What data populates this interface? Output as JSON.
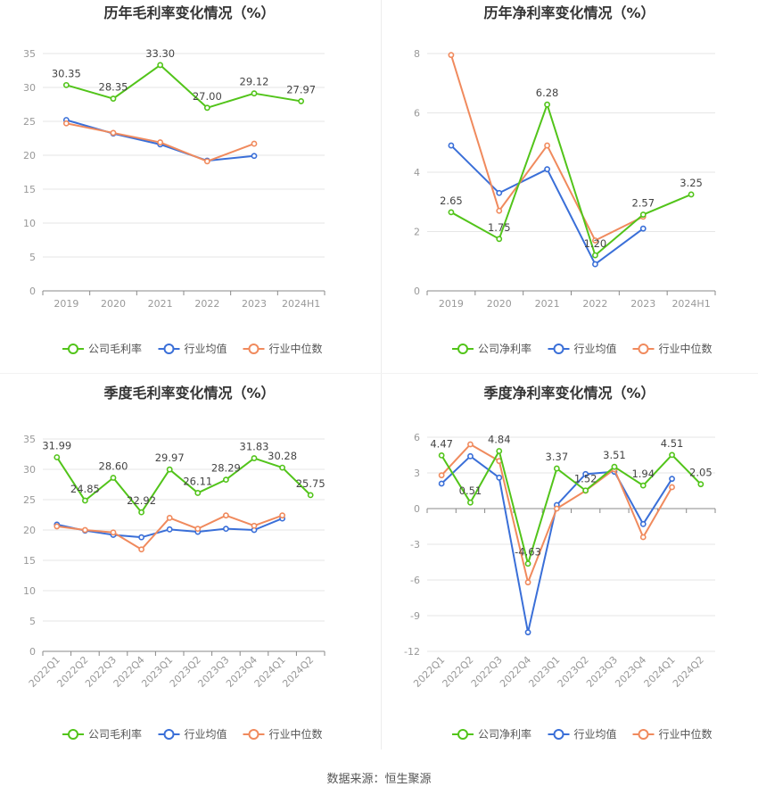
{
  "source_note": "数据来源：恒生聚源",
  "colors": {
    "company": "#52c41a",
    "avg": "#3a6fd8",
    "median": "#f08a5d",
    "grid": "#e6e6e6",
    "axis": "#999999"
  },
  "chart_data": [
    {
      "type": "line",
      "title": "历年毛利率变化情况（%）",
      "categories": [
        "2019",
        "2020",
        "2021",
        "2022",
        "2023",
        "2024H1"
      ],
      "ylim": [
        0,
        35
      ],
      "yticks": [
        0,
        5,
        10,
        15,
        20,
        25,
        30,
        35
      ],
      "legend_position": "bottom",
      "series": [
        {
          "name": "公司毛利率",
          "color": "#52c41a",
          "values": [
            30.35,
            28.35,
            33.3,
            27.0,
            29.12,
            27.97
          ],
          "labels": [
            "30.35",
            "28.35",
            "33.30",
            "27.00",
            "29.12",
            "27.97"
          ]
        },
        {
          "name": "行业均值",
          "color": "#3a6fd8",
          "values": [
            25.2,
            23.2,
            21.6,
            19.2,
            19.9,
            null
          ]
        },
        {
          "name": "行业中位数",
          "color": "#f08a5d",
          "values": [
            24.7,
            23.3,
            21.9,
            19.1,
            21.7,
            null
          ]
        }
      ]
    },
    {
      "type": "line",
      "title": "历年净利率变化情况（%）",
      "categories": [
        "2019",
        "2020",
        "2021",
        "2022",
        "2023",
        "2024H1"
      ],
      "ylim": [
        0,
        8
      ],
      "yticks": [
        0,
        2,
        4,
        6,
        8
      ],
      "legend_position": "bottom",
      "series": [
        {
          "name": "公司净利率",
          "color": "#52c41a",
          "values": [
            2.65,
            1.75,
            6.28,
            1.2,
            2.57,
            3.25
          ],
          "labels": [
            "2.65",
            "1.75",
            "6.28",
            "1.20",
            "2.57",
            "3.25"
          ]
        },
        {
          "name": "行业均值",
          "color": "#3a6fd8",
          "values": [
            4.9,
            3.3,
            4.1,
            0.9,
            2.1,
            null
          ]
        },
        {
          "name": "行业中位数",
          "color": "#f08a5d",
          "values": [
            7.95,
            2.7,
            4.9,
            1.7,
            2.5,
            null
          ]
        }
      ]
    },
    {
      "type": "line",
      "title": "季度毛利率变化情况（%）",
      "categories": [
        "2022Q1",
        "2022Q2",
        "2022Q3",
        "2022Q4",
        "2023Q1",
        "2023Q2",
        "2023Q3",
        "2023Q4",
        "2024Q1",
        "2024Q2"
      ],
      "ylim": [
        0,
        35
      ],
      "yticks": [
        0,
        5,
        10,
        15,
        20,
        25,
        30,
        35
      ],
      "legend_position": "bottom",
      "series": [
        {
          "name": "公司毛利率",
          "color": "#52c41a",
          "values": [
            31.99,
            24.85,
            28.6,
            22.92,
            29.97,
            26.11,
            28.29,
            31.83,
            30.28,
            25.75
          ],
          "labels": [
            "31.99",
            "24.85",
            "28.60",
            "22.92",
            "29.97",
            "26.11",
            "28.29",
            "31.83",
            "30.28",
            "25.75"
          ]
        },
        {
          "name": "行业均值",
          "color": "#3a6fd8",
          "values": [
            20.9,
            19.9,
            19.2,
            18.8,
            20.1,
            19.7,
            20.2,
            20.0,
            21.9,
            null
          ]
        },
        {
          "name": "行业中位数",
          "color": "#f08a5d",
          "values": [
            20.6,
            20.0,
            19.6,
            16.8,
            22.0,
            20.2,
            22.4,
            20.7,
            22.4,
            null
          ]
        }
      ]
    },
    {
      "type": "line",
      "title": "季度净利率变化情况（%）",
      "categories": [
        "2022Q1",
        "2022Q2",
        "2022Q3",
        "2022Q4",
        "2023Q1",
        "2023Q2",
        "2023Q3",
        "2023Q4",
        "2024Q1",
        "2024Q2"
      ],
      "ylim": [
        -12,
        6
      ],
      "yticks": [
        -12,
        -9,
        -6,
        -3,
        0,
        3,
        6
      ],
      "legend_position": "bottom",
      "series": [
        {
          "name": "公司净利率",
          "color": "#52c41a",
          "values": [
            4.47,
            0.51,
            4.84,
            -4.63,
            3.37,
            1.52,
            3.51,
            1.94,
            4.51,
            2.05
          ],
          "labels": [
            "4.47",
            "0.51",
            "4.84",
            "-4.63",
            "3.37",
            "1.52",
            "3.51",
            "1.94",
            "4.51",
            "2.05"
          ]
        },
        {
          "name": "行业均值",
          "color": "#3a6fd8",
          "values": [
            2.1,
            4.4,
            2.6,
            -10.4,
            0.3,
            2.9,
            3.1,
            -1.3,
            2.5,
            null
          ]
        },
        {
          "name": "行业中位数",
          "color": "#f08a5d",
          "values": [
            2.8,
            5.4,
            4.0,
            -6.2,
            0.0,
            1.5,
            3.3,
            -2.4,
            1.8,
            null
          ]
        }
      ]
    }
  ]
}
